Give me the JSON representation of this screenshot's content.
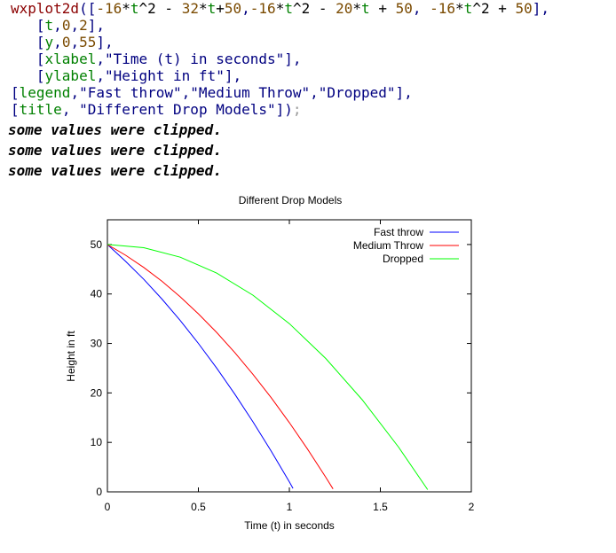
{
  "code": {
    "l1": {
      "p1": "wxplot2d",
      "p2": "([",
      "p3": "-16",
      "p4": "*",
      "p5": "t",
      "p6": "^2 - ",
      "p7": "32",
      "p8": "*",
      "p9": "t",
      "p10": "+",
      "p11": "50",
      "p12": ",",
      "p13": "-16",
      "p14": "*",
      "p15": "t",
      "p16": "^2 - ",
      "p17": "20",
      "p18": "*",
      "p19": "t",
      "p20": " + ",
      "p21": "50",
      "p22": ", ",
      "p23": "-16",
      "p24": "*",
      "p25": "t",
      "p26": "^2 + ",
      "p27": "50",
      "p28": "],"
    },
    "l2": {
      "p1": "   [",
      "p2": "t",
      "p3": ",",
      "p4": "0",
      "p5": ",",
      "p6": "2",
      "p7": "],"
    },
    "l3": {
      "p1": "   [",
      "p2": "y",
      "p3": ",",
      "p4": "0",
      "p5": ",",
      "p6": "55",
      "p7": "],"
    },
    "l4": {
      "p1": "   [",
      "p2": "xlabel",
      "p3": ",\"Time (t) in seconds\"],"
    },
    "l5": {
      "p1": "   [",
      "p2": "ylabel",
      "p3": ",\"Height in ft\"],"
    },
    "l6": {
      "p1": "[",
      "p2": "legend",
      "p3": ",\"Fast throw\",\"Medium Throw\",\"Dropped\"],"
    },
    "l7": {
      "p1": "[",
      "p2": "title",
      "p3": ", \"Different Drop Models\"])",
      "p4": ";"
    }
  },
  "warnings": [
    "some values were clipped.",
    "some values were clipped.",
    "some values were clipped."
  ],
  "chart_data": {
    "type": "line",
    "title": "Different Drop Models",
    "xlabel": "Time (t) in seconds",
    "ylabel": "Height in ft",
    "xlim": [
      0,
      2
    ],
    "ylim": [
      0,
      55
    ],
    "xticks": [
      0,
      0.5,
      1,
      1.5,
      2
    ],
    "xtick_labels": [
      "0",
      "0.5",
      "1",
      "1.5",
      "2"
    ],
    "yticks": [
      0,
      10,
      20,
      30,
      40,
      50
    ],
    "ytick_labels": [
      "0",
      "10",
      "20",
      "30",
      "40",
      "50"
    ],
    "legend_position": "top-right",
    "grid": false,
    "series": [
      {
        "name": "Fast throw",
        "color": "#0000ff",
        "x": [
          0,
          0.1,
          0.2,
          0.3,
          0.4,
          0.5,
          0.6,
          0.7,
          0.8,
          0.9,
          1.0,
          1.02
        ],
        "y": [
          50,
          46.6,
          42.96,
          38.96,
          34.64,
          30,
          25.04,
          19.76,
          14.16,
          8.24,
          2,
          0.7
        ]
      },
      {
        "name": "Medium Throw",
        "color": "#ff0000",
        "x": [
          0,
          0.1,
          0.2,
          0.3,
          0.4,
          0.5,
          0.6,
          0.7,
          0.8,
          0.9,
          1.0,
          1.1,
          1.2,
          1.24
        ],
        "y": [
          50,
          47.84,
          45.36,
          42.56,
          39.44,
          36,
          32.24,
          28.16,
          23.76,
          19.04,
          14,
          8.64,
          2.96,
          0.6
        ]
      },
      {
        "name": "Dropped",
        "color": "#00ff00",
        "x": [
          0,
          0.2,
          0.4,
          0.6,
          0.8,
          1.0,
          1.2,
          1.4,
          1.6,
          1.76
        ],
        "y": [
          50,
          49.36,
          47.44,
          44.24,
          39.76,
          34,
          26.96,
          18.64,
          9.04,
          0.44
        ]
      }
    ]
  }
}
